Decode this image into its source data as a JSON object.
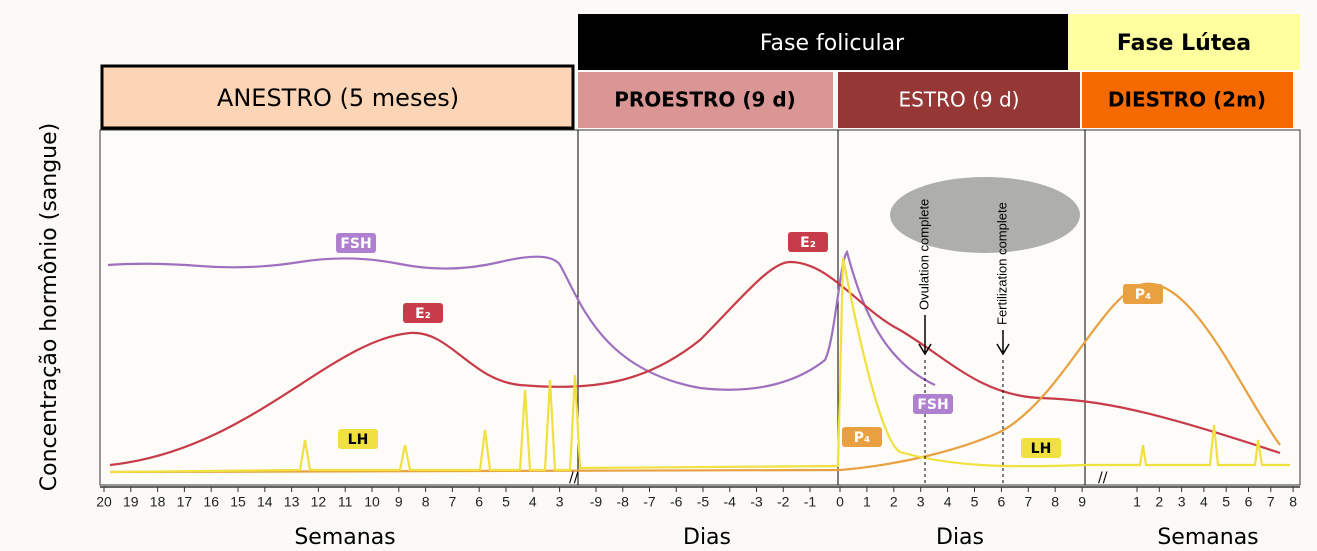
{
  "phases": {
    "follicular": "Fase folicular",
    "luteal": "Fase Lútea"
  },
  "stages": [
    "ANESTRO (5 meses)",
    "PROESTRO  (9 d)",
    "ESTRO  (9 d)",
    "DIESTRO (2m)"
  ],
  "y_axis_label": "Concentração hormônio (sangue)",
  "hormone_labels": [
    "FSH",
    "E₂",
    "LH",
    "E₂",
    "FSH",
    "P₄",
    "LH",
    "P₄"
  ],
  "annotations": [
    "Ovulation complete",
    "Fertilization complete"
  ],
  "x_ticks": {
    "weeks_before": [
      "20",
      "19",
      "18",
      "17",
      "16",
      "15",
      "14",
      "13",
      "12",
      "11",
      "10",
      "9",
      "8",
      "7",
      "6",
      "5",
      "4",
      "3"
    ],
    "days_proestrus": [
      "-9",
      "-8",
      "-7",
      "-6",
      "-5",
      "-4",
      "-3",
      "-2",
      "-1"
    ],
    "days_estrus": [
      "0",
      "1",
      "2",
      "3",
      "4",
      "5",
      "6",
      "7",
      "8",
      "9"
    ],
    "weeks_after": [
      "1",
      "2",
      "3",
      "4",
      "5",
      "6",
      "7",
      "8"
    ]
  },
  "x_axis_labels": [
    "Semanas",
    "Dias",
    "Dias",
    "Semanas"
  ]
}
